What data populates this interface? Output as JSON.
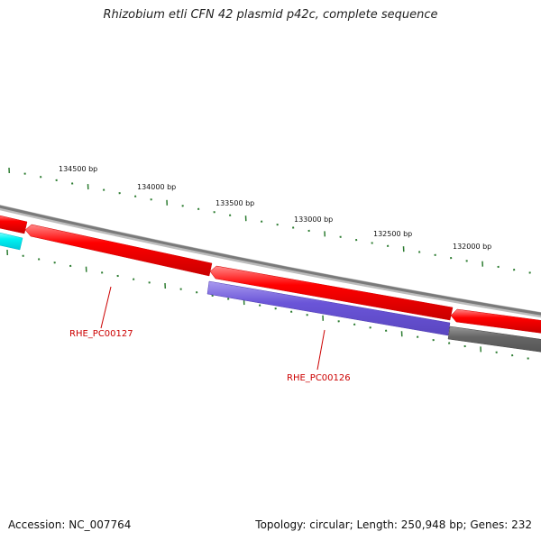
{
  "title": "Rhizobium etli CFN 42 plasmid p42c, complete sequence",
  "footer": {
    "accession": "Accession: NC_007764",
    "summary": "Topology: circular; Length: 250,948 bp; Genes: 232"
  },
  "ruler": {
    "labels": [
      "134500 bp",
      "134000 bp",
      "133500 bp",
      "133000 bp",
      "132500 bp",
      "132000 bp"
    ]
  },
  "genes": [
    {
      "label": "RHE_PC00127",
      "color": "#ff0000"
    },
    {
      "label": "RHE_PC00126",
      "color": "#7a66dd"
    }
  ],
  "colors": {
    "backbone": "#808080",
    "plus_strand_gene": "#ff0000",
    "minus_strand_gene": "#7a66dd",
    "other_gene": "#666666",
    "cyan_gene": "#00ffff",
    "ticks": "#2e7d32"
  }
}
